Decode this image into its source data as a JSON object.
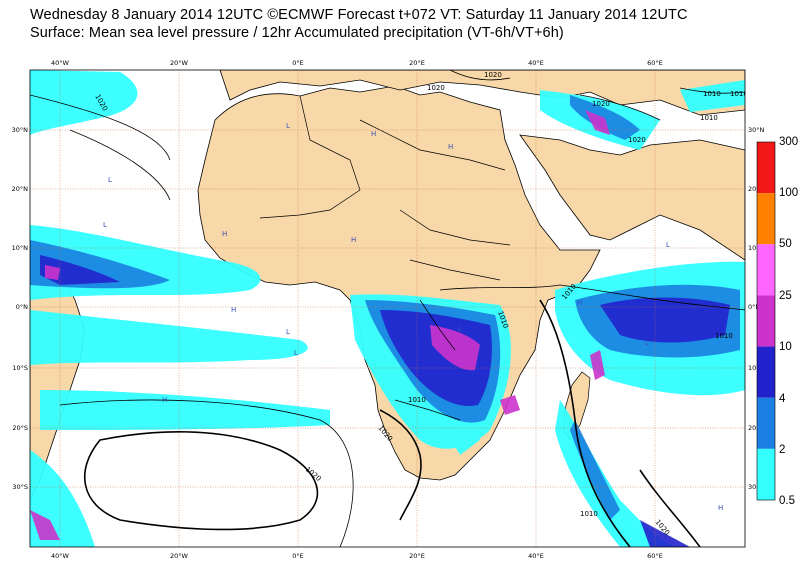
{
  "header": {
    "line1": "Wednesday 8 January 2014 12UTC ©ECMWF Forecast t+072 VT: Saturday 11 January 2014 12UTC",
    "line2": "Surface: Mean sea level pressure / 12hr Accumulated precipitation (VT-6h/VT+6h)"
  },
  "map": {
    "lon_labels": [
      "40°W",
      "20°W",
      "0°E",
      "20°E",
      "40°E",
      "60°E"
    ],
    "lat_labels": [
      "30°N",
      "20°N",
      "10°N",
      "0°N",
      "10°S",
      "20°S",
      "30°S"
    ],
    "isobar_labels": [
      "1020",
      "1020",
      "1020",
      "1020",
      "1020",
      "1010",
      "1010",
      "1010",
      "1010",
      "1010",
      "1010",
      "1020",
      "1010",
      "1020",
      "1020",
      "1010"
    ],
    "pressure_centres": [
      "H",
      "L",
      "H",
      "H",
      "L",
      "H",
      "H",
      "L",
      "L",
      "L",
      "H",
      "L",
      "H",
      "L",
      "H",
      "L"
    ],
    "colors": {
      "land": "#f8d8a8",
      "ocean": "#ffffff",
      "grid": "#c86a3a",
      "isobar": "#000000"
    }
  },
  "colorbar": {
    "labels": [
      "300",
      "100",
      "50",
      "25",
      "10",
      "4",
      "2",
      "0.5"
    ],
    "colors": [
      "#f01818",
      "#ff8000",
      "#ff66ff",
      "#cc33cc",
      "#2222cc",
      "#1a7fe0",
      "#33ffff"
    ]
  }
}
